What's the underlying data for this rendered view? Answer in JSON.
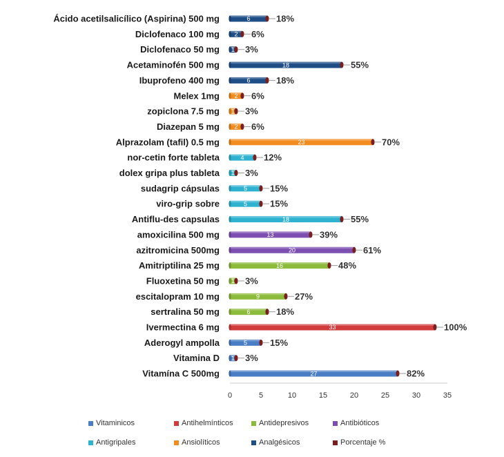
{
  "chart_data": {
    "type": "bar",
    "orientation": "horizontal",
    "categories": [
      "Ácido acetilsalicílico (Aspirina) 500 mg",
      "Diclofenaco 100 mg",
      "Diclofenaco 50 mg",
      "Acetaminofén 500 mg",
      "Ibuprofeno 400 mg",
      "Melex 1mg",
      "zopiclona 7.5 mg",
      "Diazepan 5 mg",
      "Alprazolam (tafil) 0.5 mg",
      "nor-cetin forte tableta",
      "dolex gripa plus tableta",
      "sudagrip cápsulas",
      "viro-grip sobre",
      "Antiflu-des capsulas",
      "amoxicilina 500 mg",
      "azitromicina 500mg",
      "Amitriptilina 25 mg",
      "Fluoxetina 50 mg",
      "escitalopram 10 mg",
      "sertralina 50 mg",
      "Ivermectina 6 mg",
      "Aderogyl ampolla",
      "Vitamina D",
      "Vitamína C 500mg"
    ],
    "values": [
      6,
      2,
      1,
      18,
      6,
      2,
      1,
      2,
      23,
      4,
      1,
      5,
      5,
      18,
      13,
      20,
      16,
      1,
      9,
      6,
      33,
      5,
      1,
      27
    ],
    "percent_labels": [
      "18%",
      "6%",
      "3%",
      "55%",
      "18%",
      "6%",
      "3%",
      "6%",
      "70%",
      "12%",
      "3%",
      "15%",
      "15%",
      "55%",
      "39%",
      "61%",
      "48%",
      "3%",
      "27%",
      "18%",
      "100%",
      "15%",
      "3%",
      "82%"
    ],
    "groups": [
      "Analgésicos",
      "Analgésicos",
      "Analgésicos",
      "Analgésicos",
      "Analgésicos",
      "Ansiolíticos",
      "Ansiolíticos",
      "Ansiolíticos",
      "Ansiolíticos",
      "Antigripales",
      "Antigripales",
      "Antigripales",
      "Antigripales",
      "Antigripales",
      "Antibióticos",
      "Antibióticos",
      "Antidepresivos",
      "Antidepresivos",
      "Antidepresivos",
      "Antidepresivos",
      "Antihelmínticos",
      "Vitaminicos",
      "Vitaminicos",
      "Vitaminicos"
    ],
    "xlim": [
      0,
      35
    ],
    "x_ticks": [
      0,
      5,
      10,
      15,
      20,
      25,
      30,
      35
    ],
    "grid": false,
    "legend_placement": "bottom",
    "legend": [
      {
        "name": "Vitaminicos",
        "color": "#4a7ec4"
      },
      {
        "name": "Antihelmínticos",
        "color": "#d13b3b"
      },
      {
        "name": "Antidepresivos",
        "color": "#8cba3a"
      },
      {
        "name": "Antibióticos",
        "color": "#7d4fb0"
      },
      {
        "name": "Antigripales",
        "color": "#2fb2cf"
      },
      {
        "name": "Ansiolíticos",
        "color": "#f28c1e"
      },
      {
        "name": "Analgésicos",
        "color": "#1f4e86"
      },
      {
        "name": "Porcentaje %",
        "color": "#7a1f1f"
      }
    ],
    "group_colors": {
      "Vitaminicos": "#4a7ec4",
      "Antihelmínticos": "#d13b3b",
      "Antidepresivos": "#8cba3a",
      "Antibióticos": "#7d4fb0",
      "Antigripales": "#2fb2cf",
      "Ansiolíticos": "#f28c1e",
      "Analgésicos": "#1f4e86",
      "Porcentaje %": "#7a1f1f"
    }
  }
}
